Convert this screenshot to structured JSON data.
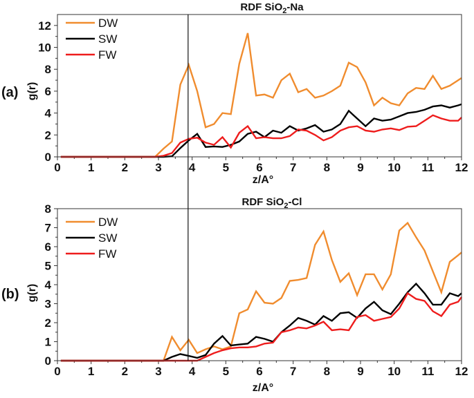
{
  "chart_data": [
    {
      "type": "line",
      "panel_label": "(a)",
      "title": "RDF SiO",
      "title_sub": "2",
      "title_suffix": "-Na",
      "xlabel": "z/A°",
      "ylabel": "g(r)",
      "xlim": [
        0,
        12
      ],
      "ylim": [
        0,
        13
      ],
      "xticks": [
        0,
        1,
        2,
        3,
        4,
        5,
        6,
        7,
        8,
        9,
        10,
        11,
        12
      ],
      "yticks": [
        0,
        2,
        4,
        6,
        8,
        10,
        12
      ],
      "grid": false,
      "legend_position": "top-left",
      "reference_line_x": 3.88,
      "x": [
        0.1,
        2.9,
        3.15,
        3.4,
        3.65,
        3.9,
        4.15,
        4.4,
        4.65,
        4.9,
        5.15,
        5.4,
        5.65,
        5.9,
        6.15,
        6.4,
        6.65,
        6.9,
        7.15,
        7.4,
        7.65,
        7.9,
        8.15,
        8.4,
        8.65,
        8.9,
        9.15,
        9.4,
        9.65,
        9.9,
        10.15,
        10.4,
        10.65,
        10.9,
        11.15,
        11.4,
        11.65,
        11.9,
        12.0
      ],
      "series": [
        {
          "name": "DW",
          "color": "#f08c2e",
          "values": [
            0,
            0,
            0.75,
            1.4,
            6.6,
            8.4,
            6.0,
            2.7,
            3.0,
            4.0,
            3.9,
            8.5,
            11.3,
            5.6,
            5.7,
            5.4,
            7.0,
            7.6,
            5.9,
            6.2,
            5.4,
            5.6,
            6.0,
            6.5,
            8.6,
            8.2,
            6.8,
            4.7,
            5.4,
            4.9,
            4.7,
            5.8,
            6.3,
            6.2,
            7.4,
            6.2,
            6.5,
            7.0,
            7.2
          ]
        },
        {
          "name": "SW",
          "color": "#000000",
          "values": [
            0,
            0,
            0,
            0.05,
            0.8,
            1.5,
            2.1,
            0.9,
            0.95,
            0.9,
            1.1,
            1.4,
            2.1,
            2.3,
            1.8,
            2.4,
            2.2,
            2.8,
            2.4,
            2.6,
            2.9,
            2.3,
            2.5,
            3.0,
            4.2,
            3.5,
            2.8,
            3.5,
            3.3,
            3.4,
            3.7,
            4.0,
            4.1,
            4.3,
            4.6,
            4.7,
            4.5,
            4.7,
            4.8
          ]
        },
        {
          "name": "FW",
          "color": "#ee1c1c",
          "values": [
            0,
            0,
            0.1,
            0.35,
            1.3,
            1.65,
            1.75,
            1.3,
            1.1,
            1.8,
            0.85,
            2.2,
            2.8,
            1.7,
            1.8,
            1.7,
            1.7,
            1.9,
            2.5,
            2.4,
            2.0,
            1.5,
            1.8,
            2.4,
            2.7,
            2.8,
            2.4,
            2.3,
            2.5,
            2.6,
            2.45,
            2.75,
            2.8,
            3.3,
            3.8,
            3.5,
            3.3,
            3.3,
            3.6
          ]
        }
      ]
    },
    {
      "type": "line",
      "panel_label": "(b)",
      "title": "RDF SiO",
      "title_sub": "2",
      "title_suffix": "-Cl",
      "xlabel": "z/A°",
      "ylabel": "g(r)",
      "xlim": [
        0,
        12
      ],
      "ylim": [
        0,
        8
      ],
      "xticks": [
        0,
        1,
        2,
        3,
        4,
        5,
        6,
        7,
        8,
        9,
        10,
        11,
        12
      ],
      "yticks": [
        0,
        1,
        2,
        3,
        4,
        5,
        6,
        7,
        8
      ],
      "grid": false,
      "legend_position": "top-left",
      "reference_line_x": 3.88,
      "x": [
        0.1,
        3.15,
        3.4,
        3.65,
        3.9,
        4.15,
        4.4,
        4.65,
        4.9,
        5.15,
        5.4,
        5.65,
        5.9,
        6.15,
        6.4,
        6.65,
        6.9,
        7.15,
        7.4,
        7.65,
        7.9,
        8.15,
        8.4,
        8.65,
        8.9,
        9.15,
        9.4,
        9.65,
        9.9,
        10.15,
        10.4,
        10.65,
        10.9,
        11.15,
        11.4,
        11.65,
        11.9,
        12.0
      ],
      "series": [
        {
          "name": "DW",
          "color": "#f08c2e",
          "values": [
            0,
            0,
            1.25,
            0.55,
            1.1,
            0.4,
            0.6,
            0.75,
            0.6,
            0.75,
            2.5,
            2.7,
            3.65,
            3.05,
            3.0,
            3.3,
            4.2,
            4.25,
            4.35,
            6.1,
            6.8,
            5.3,
            4.15,
            4.6,
            3.45,
            4.55,
            4.55,
            3.75,
            4.55,
            6.85,
            7.25,
            6.5,
            5.8,
            4.7,
            3.6,
            5.2,
            5.55,
            5.7
          ]
        },
        {
          "name": "SW",
          "color": "#000000",
          "values": [
            0,
            0,
            0.2,
            0.35,
            0.25,
            0.15,
            0.3,
            0.9,
            1.3,
            0.8,
            0.85,
            0.9,
            1.25,
            1.15,
            1.0,
            1.5,
            1.85,
            2.25,
            2.1,
            1.9,
            2.35,
            2.1,
            2.5,
            2.55,
            2.25,
            2.75,
            3.1,
            2.65,
            2.45,
            3.0,
            3.6,
            4.05,
            3.55,
            2.95,
            2.95,
            3.55,
            3.4,
            3.55
          ]
        },
        {
          "name": "FW",
          "color": "#ee1c1c",
          "values": [
            0,
            0,
            0,
            0,
            0,
            0,
            0.2,
            0.4,
            0.55,
            0.65,
            0.7,
            0.7,
            0.75,
            0.9,
            0.95,
            1.5,
            1.6,
            1.75,
            1.7,
            1.85,
            2.05,
            1.6,
            1.65,
            1.6,
            2.3,
            2.4,
            2.1,
            2.2,
            2.3,
            2.75,
            3.55,
            3.25,
            3.15,
            2.6,
            2.35,
            2.95,
            3.1,
            3.35
          ]
        }
      ]
    }
  ]
}
